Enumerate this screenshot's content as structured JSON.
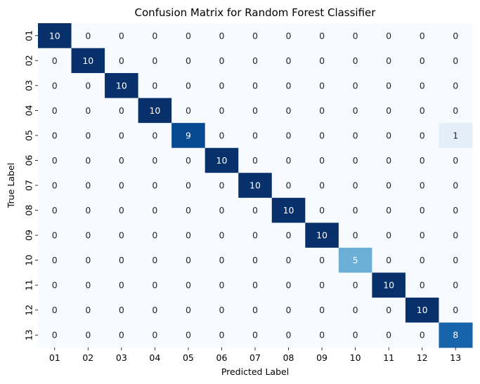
{
  "chart_data": {
    "type": "heatmap",
    "title": "Confusion Matrix for Random Forest Classifier",
    "xlabel": "Predicted Label",
    "ylabel": "True Label",
    "x_categories": [
      "01",
      "02",
      "03",
      "04",
      "05",
      "06",
      "07",
      "08",
      "09",
      "10",
      "11",
      "12",
      "13"
    ],
    "y_categories": [
      "01",
      "02",
      "03",
      "04",
      "05",
      "06",
      "07",
      "08",
      "09",
      "10",
      "11",
      "12",
      "13"
    ],
    "values": [
      [
        10,
        0,
        0,
        0,
        0,
        0,
        0,
        0,
        0,
        0,
        0,
        0,
        0
      ],
      [
        0,
        10,
        0,
        0,
        0,
        0,
        0,
        0,
        0,
        0,
        0,
        0,
        0
      ],
      [
        0,
        0,
        10,
        0,
        0,
        0,
        0,
        0,
        0,
        0,
        0,
        0,
        0
      ],
      [
        0,
        0,
        0,
        10,
        0,
        0,
        0,
        0,
        0,
        0,
        0,
        0,
        0
      ],
      [
        0,
        0,
        0,
        0,
        9,
        0,
        0,
        0,
        0,
        0,
        0,
        0,
        1
      ],
      [
        0,
        0,
        0,
        0,
        0,
        10,
        0,
        0,
        0,
        0,
        0,
        0,
        0
      ],
      [
        0,
        0,
        0,
        0,
        0,
        0,
        10,
        0,
        0,
        0,
        0,
        0,
        0
      ],
      [
        0,
        0,
        0,
        0,
        0,
        0,
        0,
        10,
        0,
        0,
        0,
        0,
        0
      ],
      [
        0,
        0,
        0,
        0,
        0,
        0,
        0,
        0,
        10,
        0,
        0,
        0,
        0
      ],
      [
        0,
        0,
        0,
        0,
        0,
        0,
        0,
        0,
        0,
        5,
        0,
        0,
        0
      ],
      [
        0,
        0,
        0,
        0,
        0,
        0,
        0,
        0,
        0,
        0,
        10,
        0,
        0
      ],
      [
        0,
        0,
        0,
        0,
        0,
        0,
        0,
        0,
        0,
        0,
        0,
        10,
        0
      ],
      [
        0,
        0,
        0,
        0,
        0,
        0,
        0,
        0,
        0,
        0,
        0,
        0,
        8
      ]
    ],
    "value_range": [
      0,
      10
    ],
    "colormap": "Blues",
    "colorbar": false,
    "annotated": true
  }
}
